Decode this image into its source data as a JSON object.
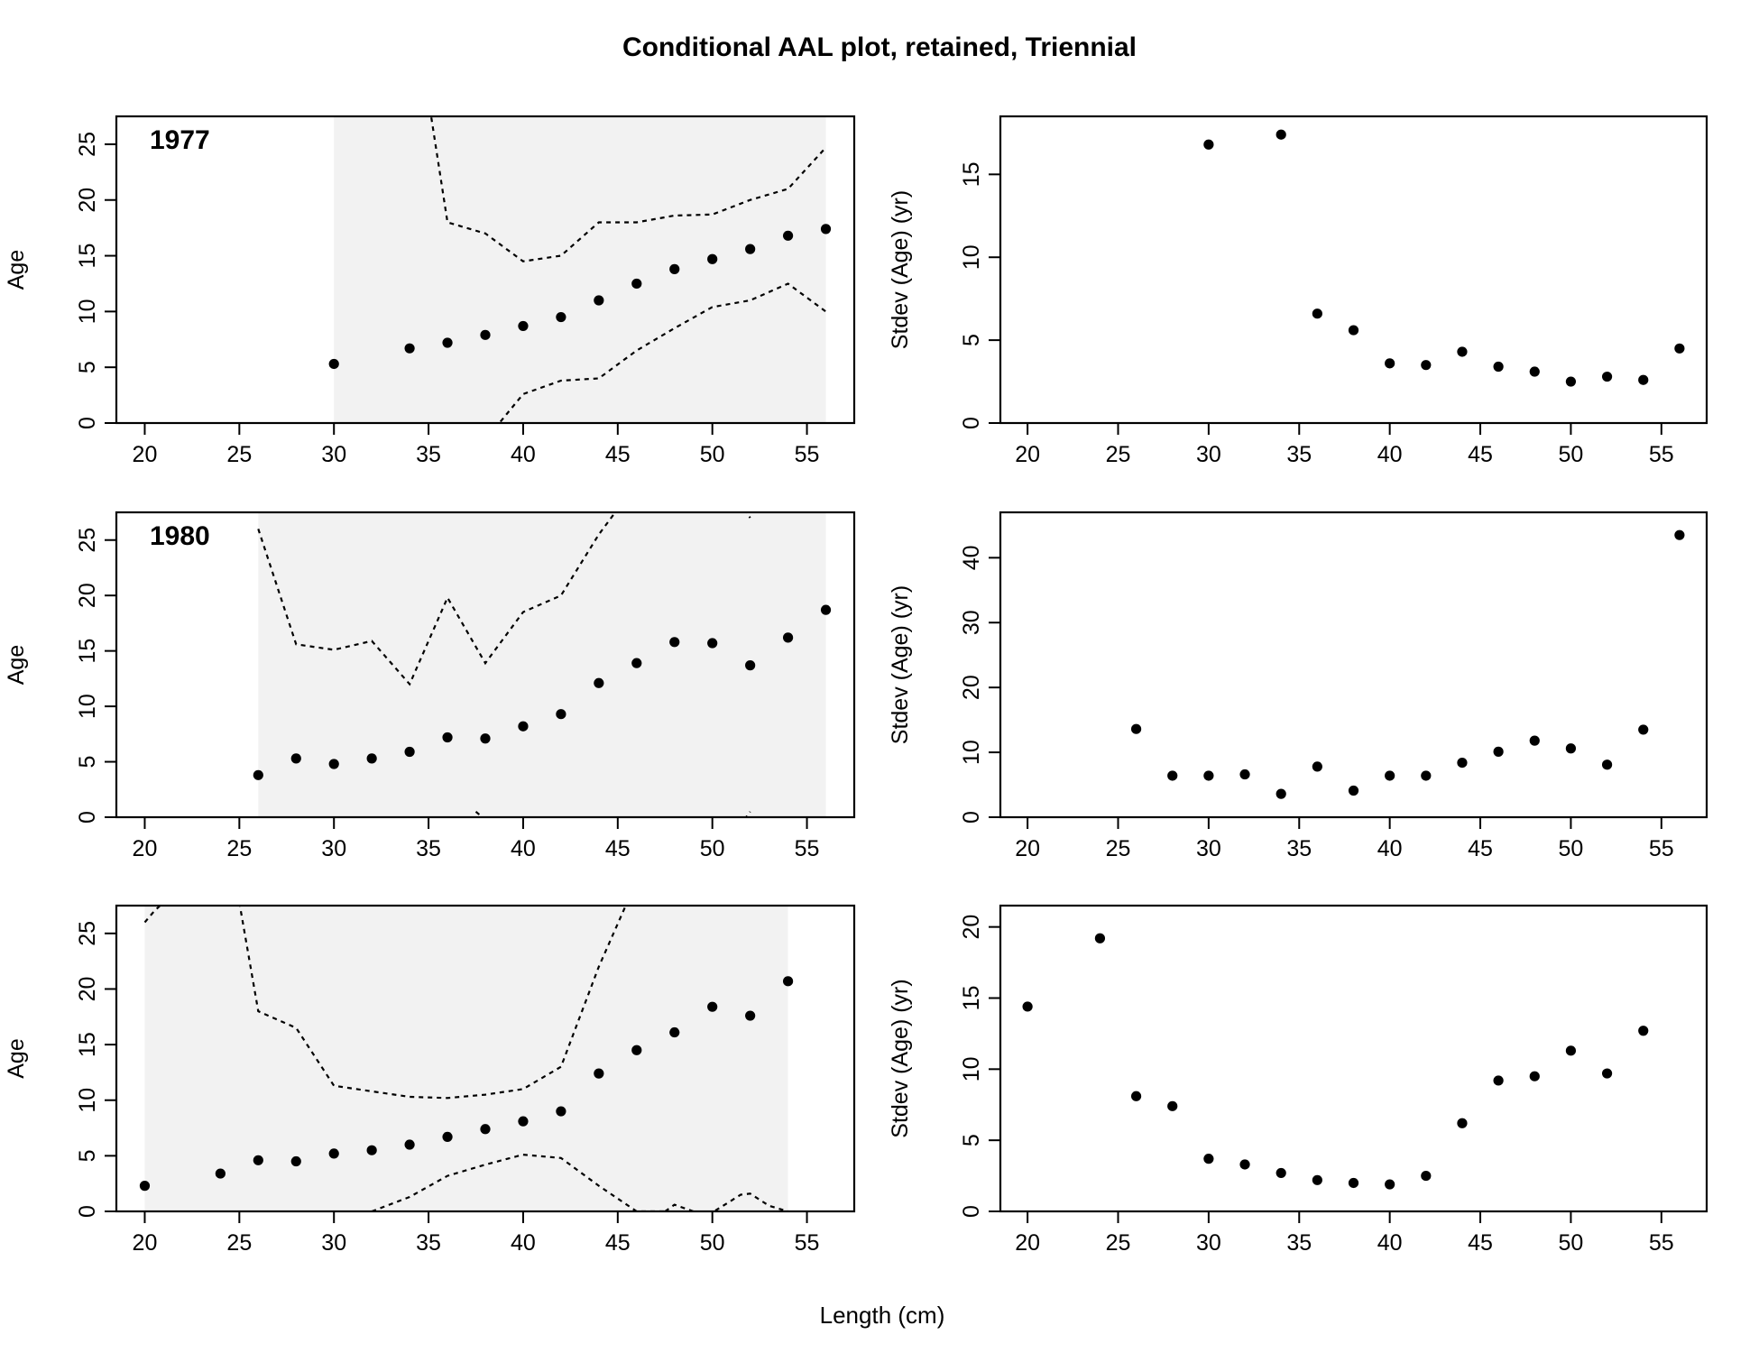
{
  "title": "Conditional AAL plot, retained, Triennial",
  "xlabel": "Length (cm)",
  "chart_data": [
    {
      "type": "scatter",
      "panel": "age",
      "year_label": "1977",
      "ylabel": "Age",
      "xlim": [
        18.5,
        57.5
      ],
      "ylim": [
        0,
        27.5
      ],
      "xticks": [
        20,
        25,
        30,
        35,
        40,
        45,
        50,
        55
      ],
      "yticks": [
        0,
        5,
        10,
        15,
        20,
        25
      ],
      "grid": false,
      "shaded_range": [
        30,
        56
      ],
      "points": [
        [
          30,
          5.3
        ],
        [
          34,
          6.7
        ],
        [
          36,
          7.2
        ],
        [
          38,
          7.9
        ],
        [
          40,
          8.7
        ],
        [
          42,
          9.5
        ],
        [
          44,
          11.0
        ],
        [
          46,
          12.5
        ],
        [
          48,
          13.8
        ],
        [
          50,
          14.7
        ],
        [
          52,
          15.6
        ],
        [
          54,
          16.8
        ],
        [
          56,
          17.4
        ]
      ],
      "upper": [
        [
          35,
          29
        ],
        [
          36,
          18
        ],
        [
          38,
          17
        ],
        [
          40,
          14.5
        ],
        [
          42,
          15
        ],
        [
          44,
          18
        ],
        [
          46,
          18
        ],
        [
          48,
          18.6
        ],
        [
          50,
          18.7
        ],
        [
          52,
          20
        ],
        [
          54,
          21
        ],
        [
          56,
          24.7
        ]
      ],
      "lower": [
        [
          38.5,
          -0.5
        ],
        [
          40,
          2.6
        ],
        [
          42,
          3.8
        ],
        [
          44,
          4
        ],
        [
          46,
          6.5
        ],
        [
          48,
          8.5
        ],
        [
          50,
          10.4
        ],
        [
          52,
          11
        ],
        [
          54,
          12.5
        ],
        [
          56,
          10
        ]
      ]
    },
    {
      "type": "scatter",
      "panel": "stdev",
      "ylabel": "Stdev (Age) (yr)",
      "xlim": [
        18.5,
        57.5
      ],
      "ylim": [
        0,
        18.5
      ],
      "xticks": [
        20,
        25,
        30,
        35,
        40,
        45,
        50,
        55
      ],
      "yticks": [
        0,
        5,
        10,
        15
      ],
      "grid": false,
      "points": [
        [
          30,
          16.8
        ],
        [
          34,
          17.4
        ],
        [
          36,
          6.6
        ],
        [
          38,
          5.6
        ],
        [
          40,
          3.6
        ],
        [
          42,
          3.5
        ],
        [
          44,
          4.3
        ],
        [
          46,
          3.4
        ],
        [
          48,
          3.1
        ],
        [
          50,
          2.5
        ],
        [
          52,
          2.8
        ],
        [
          54,
          2.6
        ],
        [
          56,
          4.5
        ]
      ]
    },
    {
      "type": "scatter",
      "panel": "age",
      "year_label": "1980",
      "ylabel": "Age",
      "xlim": [
        18.5,
        57.5
      ],
      "ylim": [
        0,
        27.5
      ],
      "xticks": [
        20,
        25,
        30,
        35,
        40,
        45,
        50,
        55
      ],
      "yticks": [
        0,
        5,
        10,
        15,
        20,
        25
      ],
      "grid": false,
      "shaded_range": [
        26,
        56
      ],
      "points": [
        [
          26,
          3.8
        ],
        [
          28,
          5.3
        ],
        [
          30,
          4.8
        ],
        [
          32,
          5.3
        ],
        [
          34,
          5.9
        ],
        [
          36,
          7.2
        ],
        [
          38,
          7.1
        ],
        [
          40,
          8.2
        ],
        [
          42,
          9.3
        ],
        [
          44,
          12.1
        ],
        [
          46,
          13.9
        ],
        [
          48,
          15.8
        ],
        [
          50,
          15.7
        ],
        [
          52,
          13.7
        ],
        [
          54,
          16.2
        ],
        [
          56,
          18.7
        ]
      ],
      "upper": [
        [
          26,
          26
        ],
        [
          28,
          15.6
        ],
        [
          30,
          15.1
        ],
        [
          32,
          15.9
        ],
        [
          34,
          12
        ],
        [
          36,
          19.8
        ],
        [
          38,
          13.9
        ],
        [
          40,
          18.5
        ],
        [
          42,
          20
        ],
        [
          44,
          25.5
        ],
        [
          45,
          27.8
        ]
      ],
      "upper2": [
        [
          51.7,
          27.8
        ],
        [
          52,
          27
        ]
      ],
      "lower": [
        [
          37.5,
          0.5
        ],
        [
          38,
          -0.2
        ]
      ],
      "lower2": [
        [
          51.7,
          -0.2
        ],
        [
          52,
          0.5
        ]
      ]
    },
    {
      "type": "scatter",
      "panel": "stdev",
      "ylabel": "Stdev (Age) (yr)",
      "xlim": [
        18.5,
        57.5
      ],
      "ylim": [
        0,
        47
      ],
      "xticks": [
        20,
        25,
        30,
        35,
        40,
        45,
        50,
        55
      ],
      "yticks": [
        0,
        10,
        20,
        30,
        40
      ],
      "grid": false,
      "points": [
        [
          26,
          13.6
        ],
        [
          28,
          6.4
        ],
        [
          30,
          6.4
        ],
        [
          32,
          6.6
        ],
        [
          34,
          3.6
        ],
        [
          36,
          7.8
        ],
        [
          38,
          4.1
        ],
        [
          40,
          6.4
        ],
        [
          42,
          6.4
        ],
        [
          44,
          8.4
        ],
        [
          46,
          10.1
        ],
        [
          48,
          11.8
        ],
        [
          50,
          10.6
        ],
        [
          52,
          8.1
        ],
        [
          54,
          13.5
        ],
        [
          56,
          43.5
        ]
      ]
    },
    {
      "type": "scatter",
      "panel": "age",
      "ylabel": "Age",
      "xlim": [
        18.5,
        57.5
      ],
      "ylim": [
        0,
        27.5
      ],
      "xticks": [
        20,
        25,
        30,
        35,
        40,
        45,
        50,
        55
      ],
      "yticks": [
        0,
        5,
        10,
        15,
        20,
        25
      ],
      "grid": false,
      "shaded_range": [
        20,
        54
      ],
      "points": [
        [
          20,
          2.3
        ],
        [
          24,
          3.4
        ],
        [
          26,
          4.6
        ],
        [
          28,
          4.5
        ],
        [
          30,
          5.2
        ],
        [
          32,
          5.5
        ],
        [
          34,
          6.0
        ],
        [
          36,
          6.7
        ],
        [
          38,
          7.4
        ],
        [
          40,
          8.1
        ],
        [
          42,
          9.0
        ],
        [
          44,
          12.4
        ],
        [
          46,
          14.5
        ],
        [
          48,
          16.1
        ],
        [
          50,
          18.4
        ],
        [
          52,
          17.6
        ],
        [
          54,
          20.7
        ]
      ],
      "upper": [
        [
          20,
          26
        ],
        [
          20.5,
          27
        ],
        [
          21,
          27.8
        ]
      ],
      "upper2": [
        [
          25,
          27.8
        ],
        [
          26,
          18
        ],
        [
          28,
          16.5
        ],
        [
          30,
          11.3
        ],
        [
          32,
          10.8
        ],
        [
          34,
          10.3
        ],
        [
          36,
          10.2
        ],
        [
          38,
          10.5
        ],
        [
          40,
          11
        ],
        [
          42,
          13
        ],
        [
          44,
          22
        ],
        [
          45.5,
          27.8
        ]
      ],
      "lower": [
        [
          32,
          0
        ],
        [
          34,
          1.3
        ],
        [
          36,
          3.2
        ],
        [
          38,
          4.2
        ],
        [
          40,
          5.1
        ],
        [
          42,
          4.8
        ],
        [
          44,
          2.3
        ],
        [
          46,
          0
        ],
        [
          47.5,
          0
        ]
      ],
      "lower2": [
        [
          47.5,
          0
        ],
        [
          48,
          0.6
        ],
        [
          49,
          0
        ],
        [
          50,
          -0.1
        ],
        [
          51.5,
          1.5
        ],
        [
          52,
          1.6
        ],
        [
          53,
          0.5
        ],
        [
          54,
          0
        ]
      ]
    },
    {
      "type": "scatter",
      "panel": "stdev",
      "ylabel": "Stdev (Age) (yr)",
      "xlim": [
        18.5,
        57.5
      ],
      "ylim": [
        0,
        21.5
      ],
      "xticks": [
        20,
        25,
        30,
        35,
        40,
        45,
        50,
        55
      ],
      "yticks": [
        0,
        5,
        10,
        15,
        20
      ],
      "grid": false,
      "points": [
        [
          20,
          14.4
        ],
        [
          24,
          19.2
        ],
        [
          26,
          8.1
        ],
        [
          28,
          7.4
        ],
        [
          30,
          3.7
        ],
        [
          32,
          3.3
        ],
        [
          34,
          2.7
        ],
        [
          36,
          2.2
        ],
        [
          38,
          2.0
        ],
        [
          40,
          1.9
        ],
        [
          42,
          2.5
        ],
        [
          44,
          6.2
        ],
        [
          46,
          9.2
        ],
        [
          48,
          9.5
        ],
        [
          50,
          11.3
        ],
        [
          52,
          9.7
        ],
        [
          54,
          12.7
        ]
      ]
    }
  ]
}
